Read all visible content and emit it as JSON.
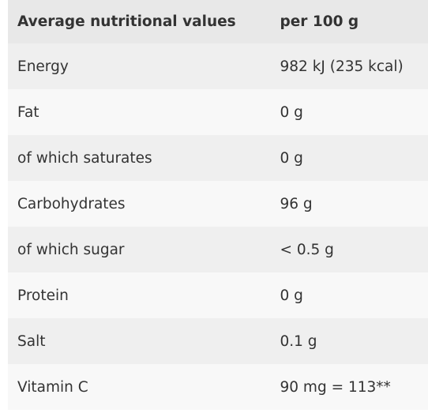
{
  "table": {
    "header": {
      "name": "Average nutritional values",
      "value": "per 100 g"
    },
    "rows": [
      {
        "name": "Energy",
        "value": "982 kJ (235 kcal)"
      },
      {
        "name": "Fat",
        "value": "0 g"
      },
      {
        "name": "of which saturates",
        "value": "0 g"
      },
      {
        "name": "Carbohydrates",
        "value": "96 g"
      },
      {
        "name": "of which sugar",
        "value": "< 0.5 g"
      },
      {
        "name": "Protein",
        "value": "0 g"
      },
      {
        "name": "Salt",
        "value": "0.1 g"
      },
      {
        "name": "Vitamin C",
        "value": "90 mg = 113**"
      }
    ]
  }
}
